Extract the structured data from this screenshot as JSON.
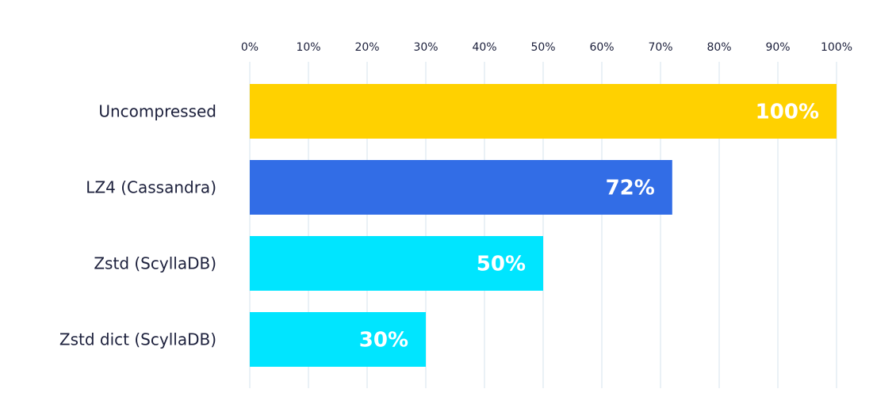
{
  "chart_data": {
    "type": "bar",
    "orientation": "horizontal",
    "title": "",
    "xlabel": "",
    "ylabel": "",
    "categories": [
      "Uncompressed",
      "LZ4 (Cassandra)",
      "Zstd (ScyllaDB)",
      "Zstd dict (ScyllaDB)"
    ],
    "values": [
      100,
      72,
      50,
      30
    ],
    "data_labels": [
      "100%",
      "72%",
      "50%",
      "30%"
    ],
    "bar_colors": [
      "#ffd100",
      "#326de6",
      "#00e5ff",
      "#00e5ff"
    ],
    "xlim": [
      0,
      100
    ],
    "xticks": [
      0,
      10,
      20,
      30,
      40,
      50,
      60,
      70,
      80,
      90,
      100
    ],
    "xtick_labels": [
      "0%",
      "10%",
      "20%",
      "30%",
      "40%",
      "50%",
      "60%",
      "70%",
      "80%",
      "90%",
      "100%"
    ],
    "x_axis_position": "top",
    "grid": true,
    "legend": false
  }
}
